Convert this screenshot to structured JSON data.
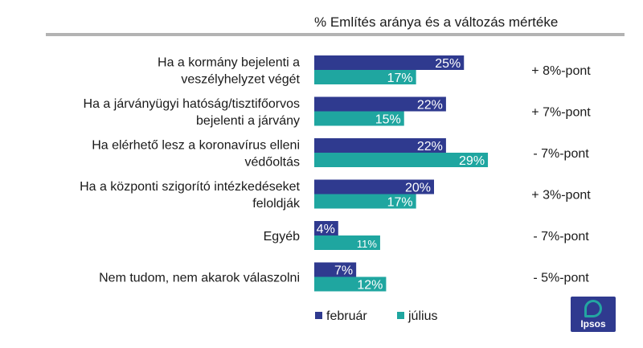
{
  "header": {
    "title": "% Említés aránya és a változás mértéke"
  },
  "logo": {
    "text": "Ipsos"
  },
  "colors": {
    "february": "#2f3a8f",
    "july": "#1fa6a0",
    "rule": "#b3b3b3",
    "logo_bg": "#2f3a8f"
  },
  "chart_data": {
    "type": "bar",
    "orientation": "horizontal",
    "title": "% Említés aránya és a változás mértéke",
    "value_unit": "%",
    "categories": [
      [
        "Ha a kormány bejelenti a",
        "veszélyhelyzet végét"
      ],
      [
        "Ha a járványügyi hatóság/tisztifőorvos",
        "bejelenti a járvány"
      ],
      [
        "Ha elérhető lesz a koronavírus elleni",
        "védőoltás"
      ],
      [
        "Ha a központi szigorító intézkedéseket",
        "feloldják"
      ],
      [
        "Egyéb"
      ],
      [
        "Nem tudom, nem akarok válaszolni"
      ]
    ],
    "series": [
      {
        "name": "február",
        "values": [
          25,
          22,
          22,
          20,
          4,
          7
        ]
      },
      {
        "name": "július",
        "values": [
          17,
          15,
          29,
          17,
          11,
          12
        ]
      }
    ],
    "changes": [
      "+ 8%-pont",
      "+ 7%-pont",
      "- 7%-pont",
      "+ 3%-pont",
      "- 7%-pont",
      "- 5%-pont"
    ],
    "xlim": [
      0,
      30
    ],
    "legend_position": "bottom"
  }
}
